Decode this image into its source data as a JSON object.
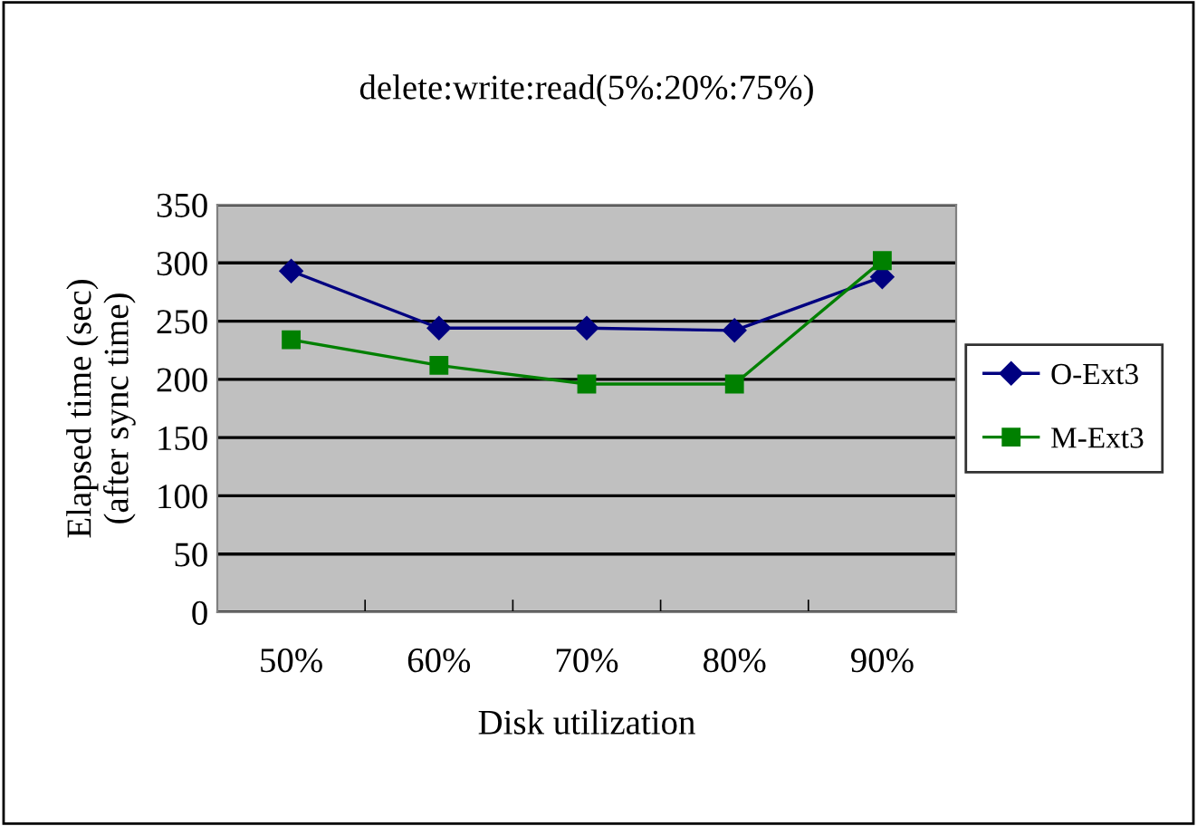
{
  "chart_data": {
    "type": "line",
    "title": "delete:write:read(5%:20%:75%)",
    "xlabel": "Disk utilization",
    "ylabel": "Elapsed time (sec)\n(after sync time)",
    "categories": [
      "50%",
      "60%",
      "70%",
      "80%",
      "90%"
    ],
    "series": [
      {
        "name": "O-Ext3",
        "color": "#000080",
        "values": [
          293,
          244,
          244,
          242,
          288
        ],
        "marker": "diamond"
      },
      {
        "name": "M-Ext3",
        "color": "#008000",
        "values": [
          234,
          212,
          196,
          196,
          302
        ],
        "marker": "square"
      }
    ],
    "ylim": [
      0,
      350
    ],
    "yticks": [
      0,
      50,
      100,
      150,
      200,
      250,
      300,
      350
    ],
    "grid": "y",
    "legend": "right",
    "line_style": "solid"
  }
}
